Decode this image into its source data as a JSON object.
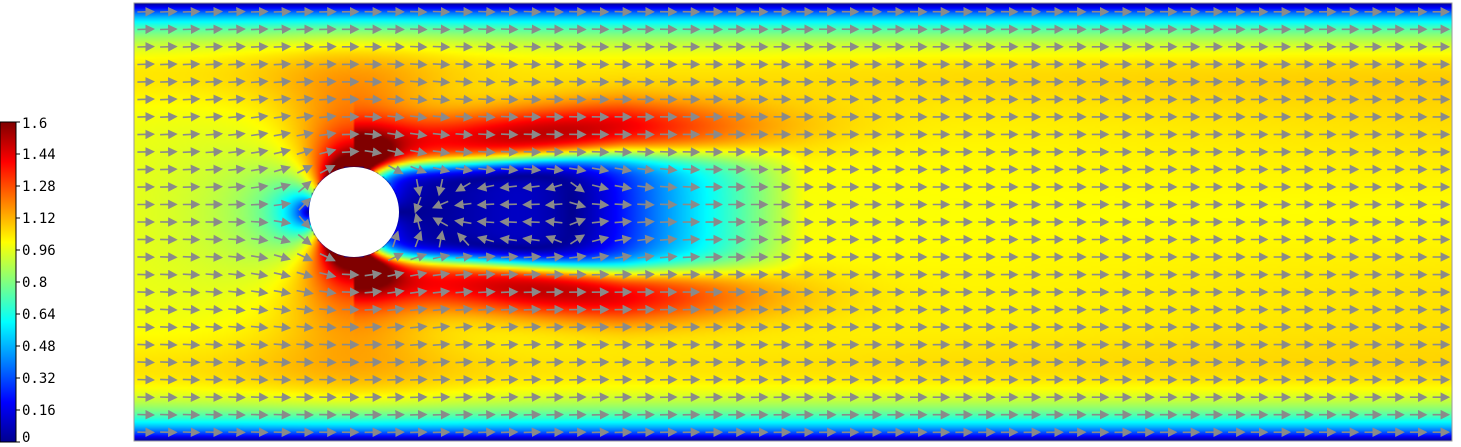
{
  "chart_data": {
    "type": "heatmap",
    "title": "",
    "xlabel": "",
    "ylabel": "",
    "colormap": "jet",
    "colorbar": {
      "min": 0,
      "max": 1.6,
      "ticks": [
        "1.6",
        "1.44",
        "1.28",
        "1.12",
        "0.96",
        "0.8",
        "0.64",
        "0.48",
        "0.32",
        "0.16",
        "0"
      ],
      "colors": [
        "#00008f",
        "#0000ff",
        "#0080ff",
        "#00ffff",
        "#80ff80",
        "#ffff00",
        "#ff8000",
        "#ff0000",
        "#800000"
      ]
    },
    "field": {
      "quantity": "velocity magnitude",
      "inflow_speed": 1.0,
      "peak_speed": 1.45,
      "obstacle": "circular cylinder",
      "overlay": "velocity vector arrows",
      "arrow_color": "#8a8a8a",
      "obstacle_color": "#ffffff"
    }
  }
}
